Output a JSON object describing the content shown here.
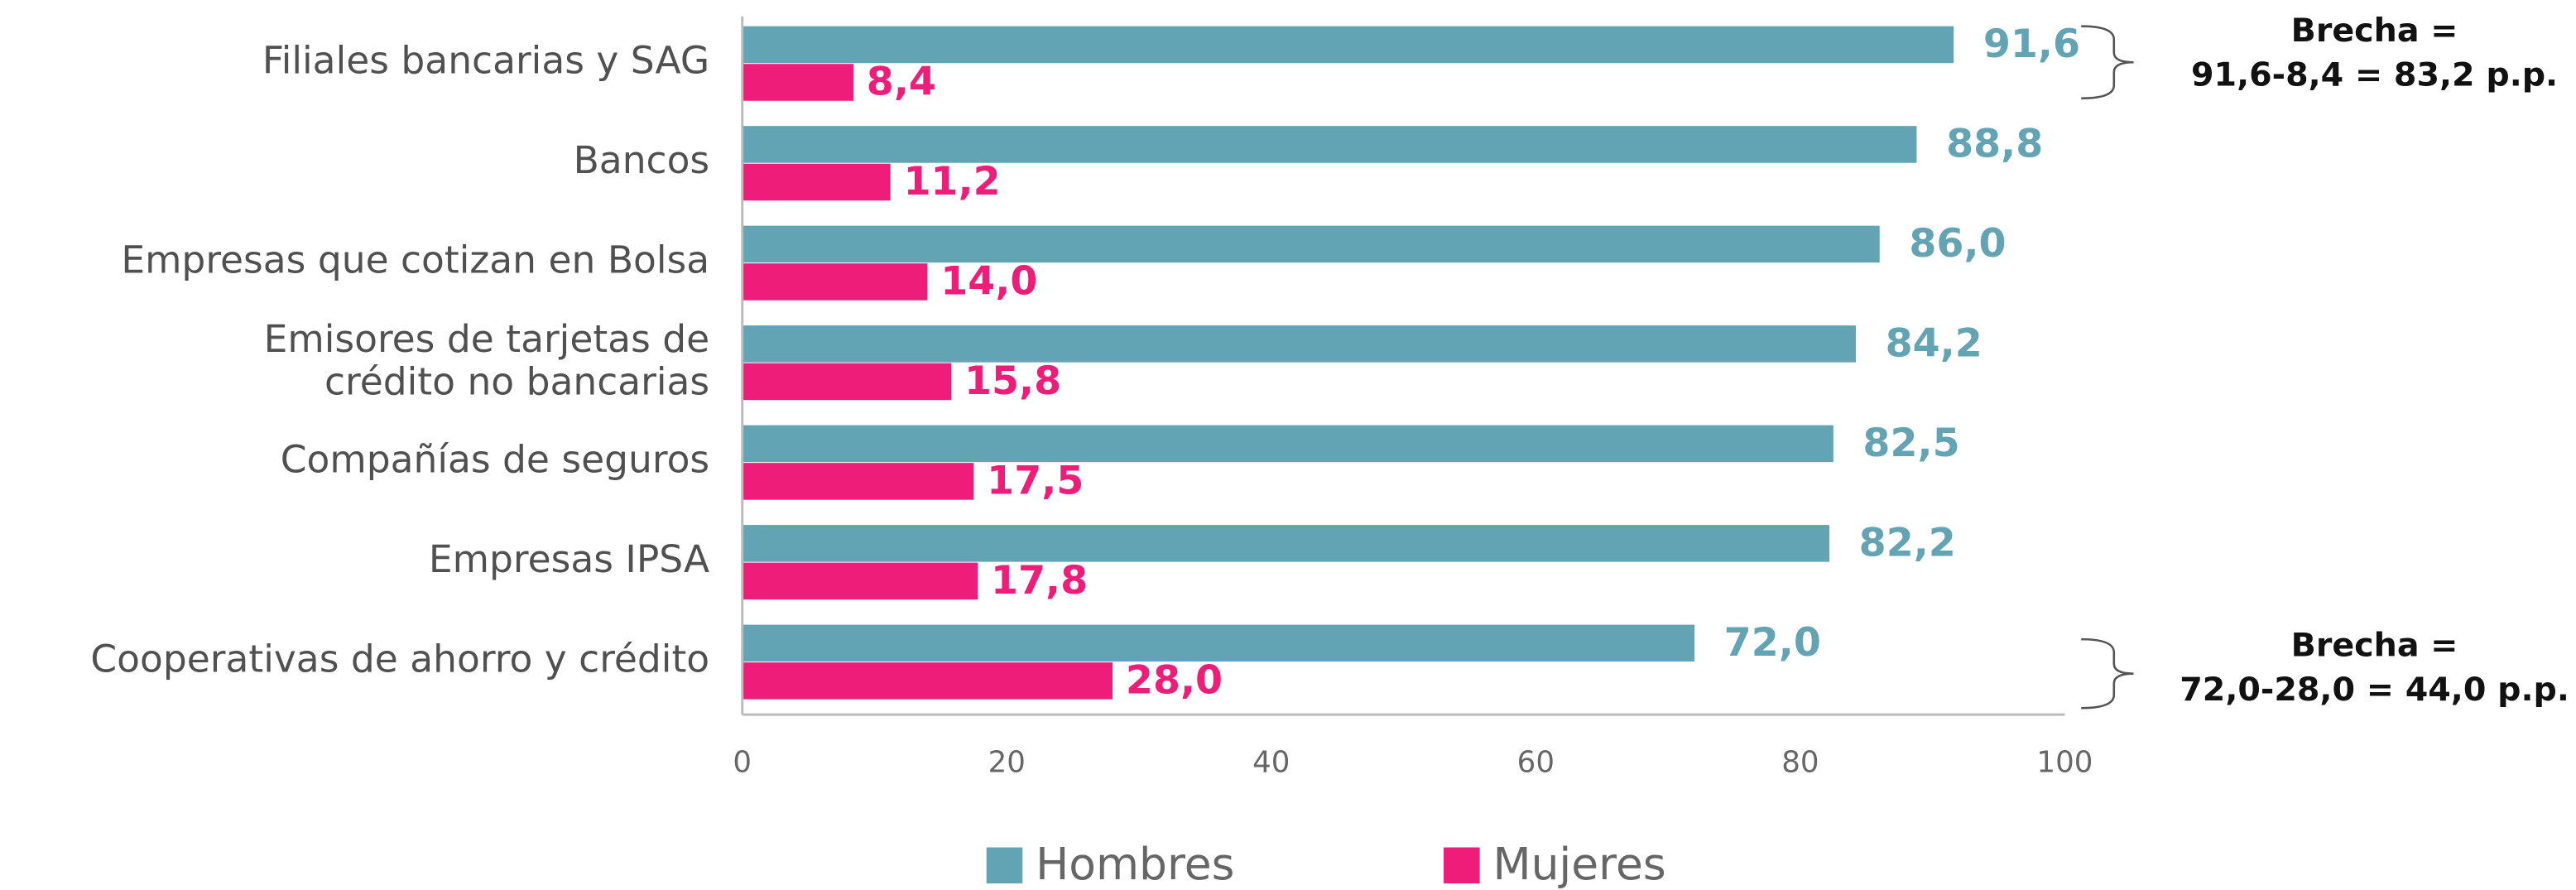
{
  "chart_data": {
    "type": "barh",
    "categories": [
      "Filiales bancarias y SAG",
      "Bancos",
      "Empresas que cotizan en Bolsa",
      "Emisores de tarjetas de\ncrédito no bancarias",
      "Compañías de seguros",
      "Empresas IPSA",
      "Cooperativas de ahorro y crédito"
    ],
    "series": [
      {
        "name": "Hombres",
        "color": "#62a3b4",
        "values": [
          91.6,
          88.8,
          86.0,
          84.2,
          82.5,
          82.2,
          72.0
        ],
        "value_labels": [
          "91,6",
          "88,8",
          "86,0",
          "84,2",
          "82,5",
          "82,2",
          "72,0"
        ]
      },
      {
        "name": "Mujeres",
        "color": "#ee1d79",
        "values": [
          8.4,
          11.2,
          14.0,
          15.8,
          17.5,
          17.8,
          28.0
        ],
        "value_labels": [
          "8,4",
          "11,2",
          "14,0",
          "15,8",
          "17,5",
          "17,8",
          "28,0"
        ]
      }
    ],
    "xlim": [
      0,
      100
    ],
    "xticks": [
      0,
      20,
      40,
      60,
      80,
      100
    ],
    "legend": "bottom",
    "annotations": [
      {
        "lines": [
          "Brecha =",
          "91,6-8,4 = 83,2 p.p."
        ]
      },
      {
        "lines": [
          "Brecha =",
          "72,0-28,0 = 44,0 p.p."
        ]
      }
    ]
  }
}
